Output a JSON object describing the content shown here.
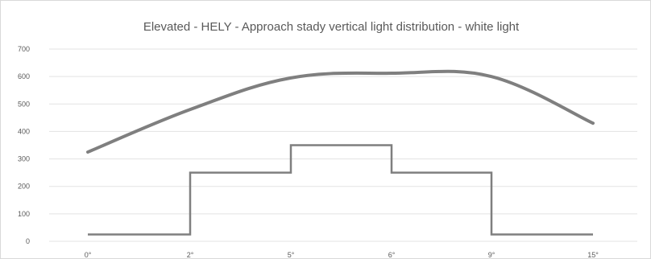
{
  "chart_data": {
    "type": "line",
    "title": "Elevated - HELY - Approach stady vertical light distribution - white light",
    "xlabel": "",
    "ylabel": "",
    "ylim": [
      0,
      700
    ],
    "yticks": [
      0,
      100,
      200,
      300,
      400,
      500,
      600,
      700
    ],
    "x_categories": [
      "0°",
      "2°",
      "5°",
      "6°",
      "9°",
      "15°"
    ],
    "grid": true,
    "legend": "none",
    "series": [
      {
        "kind": "smooth",
        "color": "#7f7f7f",
        "points": [
          {
            "x": "0°",
            "y": 325
          },
          {
            "x": "2°",
            "y": 480
          },
          {
            "x": "5°",
            "y": 595
          },
          {
            "x": "6°",
            "y": 612
          },
          {
            "x": "9°",
            "y": 600
          },
          {
            "x": "15°",
            "y": 430
          }
        ]
      },
      {
        "kind": "step",
        "color": "#7f7f7f",
        "points": [
          {
            "x": "0°",
            "y": 25
          },
          {
            "x": "2°",
            "y": 25
          },
          {
            "x": "2°",
            "y": 250
          },
          {
            "x": "5°",
            "y": 250
          },
          {
            "x": "5°",
            "y": 350
          },
          {
            "x": "6°",
            "y": 350
          },
          {
            "x": "6°",
            "y": 250
          },
          {
            "x": "9°",
            "y": 250
          },
          {
            "x": "9°",
            "y": 25
          },
          {
            "x": "15°",
            "y": 25
          }
        ]
      }
    ]
  }
}
